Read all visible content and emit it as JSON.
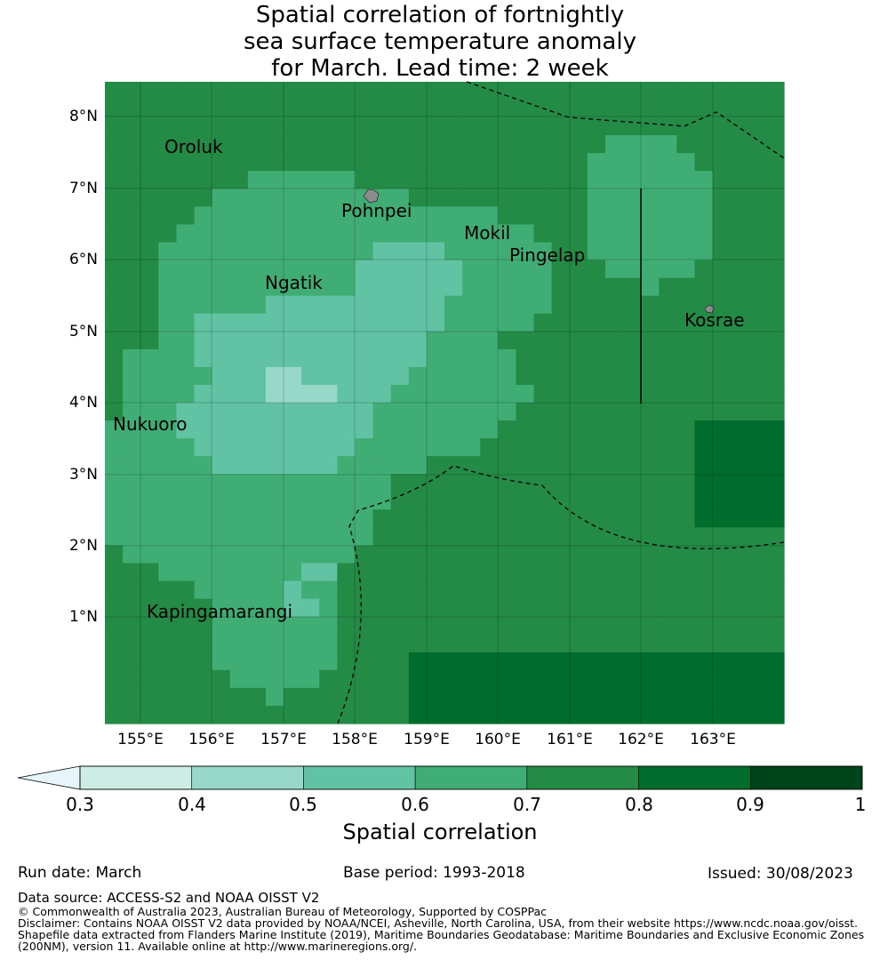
{
  "title_lines": [
    "Spatial correlation of fortnightly",
    "sea surface temperature anomaly",
    "for March. Lead time: 2 week"
  ],
  "map": {
    "lat_ticks": [
      "8°N",
      "7°N",
      "6°N",
      "5°N",
      "4°N",
      "3°N",
      "2°N",
      "1°N"
    ],
    "lon_ticks": [
      "155°E",
      "156°E",
      "157°E",
      "158°E",
      "159°E",
      "160°E",
      "161°E",
      "162°E",
      "163°E"
    ],
    "places": [
      {
        "name": "Oroluk"
      },
      {
        "name": "Pohnpei"
      },
      {
        "name": "Mokil"
      },
      {
        "name": "Pingelap"
      },
      {
        "name": "Ngatik"
      },
      {
        "name": "Kosrae"
      },
      {
        "name": "Nukuoro"
      },
      {
        "name": "Kapingamarangi"
      }
    ]
  },
  "colorbar": {
    "ticks": [
      "0.3",
      "0.4",
      "0.5",
      "0.6",
      "0.7",
      "0.8",
      "0.9",
      "1"
    ],
    "colors": [
      "#cdece4",
      "#98d8c8",
      "#62c3a4",
      "#40ad74",
      "#238b45",
      "#006d2c",
      "#00441b"
    ],
    "under_color": "#e5f5f9",
    "label": "Spatial correlation"
  },
  "footer": {
    "run_date": "Run date: March",
    "base_period": "Base period: 1993-2018",
    "issued": "Issued: 30/08/2023",
    "data_source": "Data source: ACCESS-S2 and NOAA OISST V2",
    "copyright": "© Commonwealth of Australia 2023, Australian Bureau of Meteorology, Supported by COSPPac",
    "disclaimer_1": "Disclaimer: Contains NOAA OISST V2 data provided by NOAA/NCEI, Asheville, North Carolina, USA, from their website https://www.ncdc.noaa.gov/oisst.",
    "disclaimer_2": "Shapefile data extracted from Flanders Marine Institute (2019), Maritime Boundaries Geodatabase: Maritime Boundaries and Exclusive Economic Zones",
    "disclaimer_3": "(200NM), version 11. Available online at http://www.marineregions.org/."
  }
}
